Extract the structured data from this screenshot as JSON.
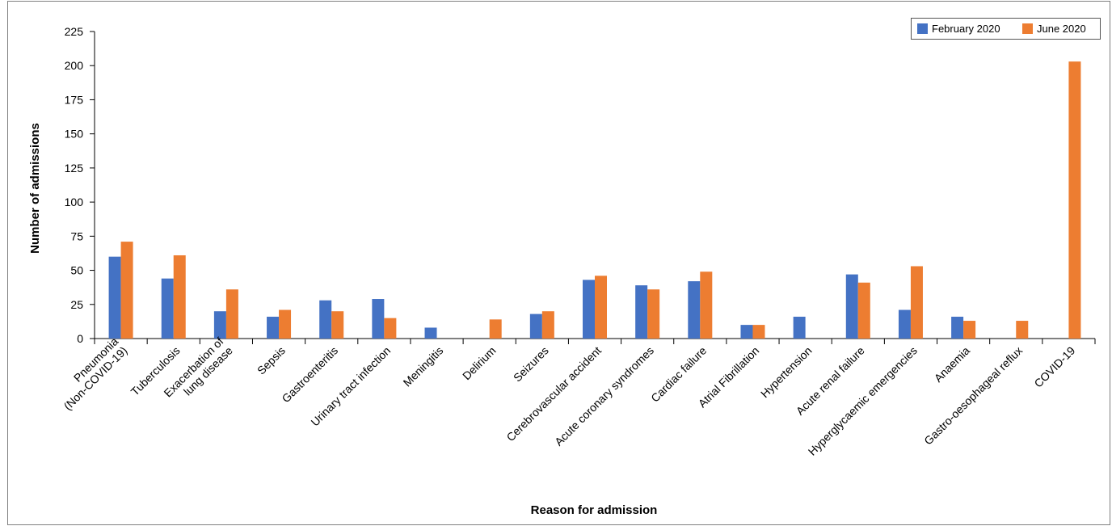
{
  "chart_data": {
    "type": "bar",
    "title": "",
    "xlabel": "Reason for admission",
    "ylabel": "Number of admissions",
    "ylim": [
      0,
      225
    ],
    "yticks": [
      0,
      25,
      50,
      75,
      100,
      125,
      150,
      175,
      200,
      225
    ],
    "grid": false,
    "legend_position": "top-right",
    "categories": [
      [
        "Pneumonia",
        "(Non-COVID-19)"
      ],
      [
        "Tuberculosis"
      ],
      [
        "Exacerbation of",
        "lung disease"
      ],
      [
        "Sepsis"
      ],
      [
        "Gastroenteritis"
      ],
      [
        "Urinary tract infection"
      ],
      [
        "Meningitis"
      ],
      [
        "Delirium"
      ],
      [
        "Seizures"
      ],
      [
        "Cerebrovascular accident"
      ],
      [
        "Acute coronary syndromes"
      ],
      [
        "Cardiac failure"
      ],
      [
        "Atrial Fibrillation"
      ],
      [
        "Hypertension"
      ],
      [
        "Acute renal failure"
      ],
      [
        "Hyperglycaemic emergencies"
      ],
      [
        "Anaemia"
      ],
      [
        "Gastro-oesophageal reflux"
      ],
      [
        "COVID-19"
      ]
    ],
    "series": [
      {
        "name": "February 2020",
        "color": "#4472C4",
        "values": [
          60,
          44,
          20,
          16,
          28,
          29,
          8,
          0,
          18,
          43,
          39,
          42,
          10,
          16,
          47,
          21,
          16,
          0,
          0
        ]
      },
      {
        "name": "June 2020",
        "color": "#ED7D31",
        "values": [
          71,
          61,
          36,
          21,
          20,
          15,
          0,
          14,
          20,
          46,
          36,
          49,
          10,
          0,
          41,
          53,
          13,
          13,
          203
        ]
      }
    ]
  }
}
